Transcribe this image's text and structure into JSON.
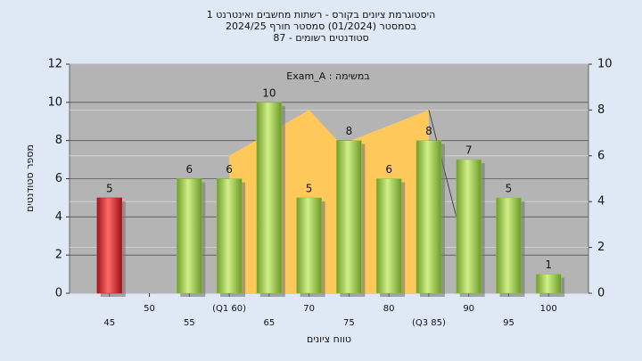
{
  "chart_data": {
    "type": "bar",
    "title": "היסטוגרמת ציונים בקורס - רשתות מחשבים ואינטרנט 1",
    "subtitle": [
      "בסמסטר  (01/2024)  סמסטר חורף 2024/25",
      "סטודנטים רשומים - 87"
    ],
    "annotation": "במשימה : Exam_A",
    "x_label": "טווח ציונים",
    "y_label": "מספר סטודנטים",
    "x": [
      45,
      50,
      55,
      60,
      65,
      70,
      75,
      80,
      85,
      90,
      95,
      100
    ],
    "values": [
      5,
      null,
      6,
      6,
      10,
      5,
      8,
      6,
      8,
      7,
      5,
      1
    ],
    "colors": [
      "#d8232a",
      "#8cc63f",
      "#8cc63f",
      "#8cc63f",
      "#8cc63f",
      "#8cc63f",
      "#8cc63f",
      "#8cc63f",
      "#8cc63f",
      "#8cc63f",
      "#8cc63f",
      "#8cc63f"
    ],
    "xlim": [
      40,
      105
    ],
    "xticks": [
      45,
      50,
      55,
      {
        "value": 60,
        "label": "(Q1 60)"
      },
      65,
      70,
      75,
      80,
      {
        "value": 85,
        "label": "(Q3 85)"
      },
      90,
      95,
      100
    ],
    "ylim": [
      0,
      12
    ],
    "yticks": [
      0,
      2,
      4,
      6,
      8,
      10,
      12
    ],
    "y2lim": [
      0,
      10
    ],
    "y2ticks": [
      0,
      2,
      4,
      6,
      8,
      10
    ],
    "grid": true,
    "area": {
      "x": [
        60,
        70,
        74,
        85
      ],
      "values": [
        6,
        8,
        6.5,
        8
      ],
      "color": "#ffc85a",
      "axis": "y2"
    },
    "line": {
      "x": [
        85,
        89
      ],
      "values": [
        8,
        2.6
      ],
      "color": "#444444",
      "axis": "y2"
    }
  }
}
